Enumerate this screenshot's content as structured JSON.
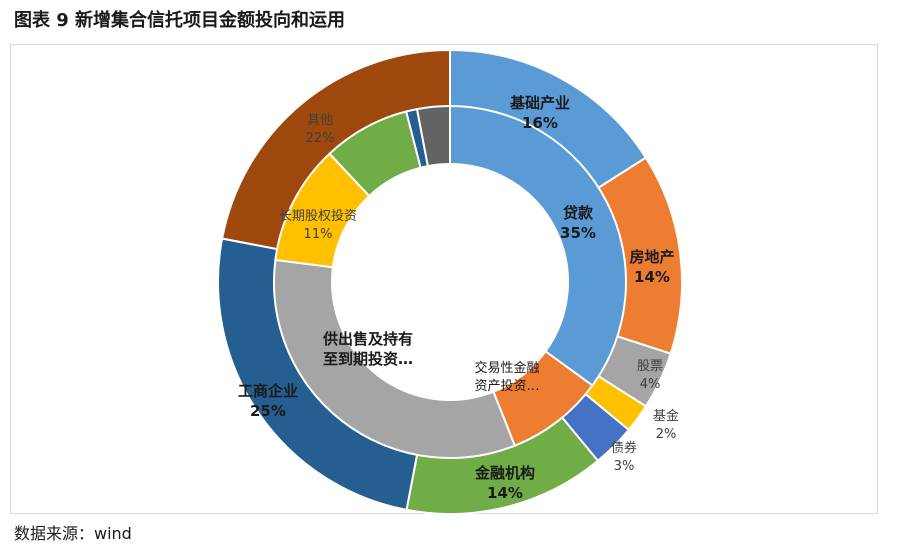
{
  "title": "图表 9  新增集合信托项目金额投向和运用",
  "source": "数据来源：wind",
  "chart_data": [
    {
      "type": "pie",
      "ring": "outer",
      "title": "",
      "slices": [
        {
          "name": "基础产业",
          "pct_label": "16%",
          "value": 16,
          "color": "#5b9bd5",
          "label_color": "#1a1a1a",
          "bold": true
        },
        {
          "name": "房地产",
          "pct_label": "14%",
          "value": 14,
          "color": "#ed7d31",
          "label_color": "#1a1a1a",
          "bold": true
        },
        {
          "name": "股票",
          "pct_label": "4%",
          "value": 4,
          "color": "#a5a5a5",
          "label_color": "#404040",
          "bold": false
        },
        {
          "name": "基金",
          "pct_label": "2%",
          "value": 2,
          "color": "#ffc000",
          "label_color": "#404040",
          "bold": false
        },
        {
          "name": "债券",
          "pct_label": "3%",
          "value": 3,
          "color": "#4472c4",
          "label_color": "#404040",
          "bold": false
        },
        {
          "name": "金融机构",
          "pct_label": "14%",
          "value": 14,
          "color": "#70ad47",
          "label_color": "#1a1a1a",
          "bold": true
        },
        {
          "name": "工商企业",
          "pct_label": "25%",
          "value": 25,
          "color": "#255e91",
          "label_color": "#1a1a1a",
          "bold": true
        },
        {
          "name": "其他",
          "pct_label": "22%",
          "value": 22,
          "color": "#9e480e",
          "label_color": "#404040",
          "bold": false
        }
      ]
    },
    {
      "type": "pie",
      "ring": "inner",
      "title": "",
      "slices": [
        {
          "name": "贷款",
          "pct_label": "35%",
          "value": 35,
          "color": "#5b9bd5",
          "label_color": "#1a1a1a",
          "bold": true
        },
        {
          "name": "交易性金融\n资产投资…",
          "pct_label": "",
          "value": 9,
          "color": "#ed7d31",
          "label_color": "#1a1a1a",
          "bold": false
        },
        {
          "name": "供出售及持有\n至到期投资…",
          "pct_label": "",
          "value": 33,
          "color": "#a5a5a5",
          "label_color": "#1a1a1a",
          "bold": true
        },
        {
          "name": "长期股权投资",
          "pct_label": "11%",
          "value": 11,
          "color": "#ffc000",
          "label_color": "#404040",
          "bold": false
        },
        {
          "name": "",
          "pct_label": "",
          "value": 8,
          "color": "#70ad47",
          "label_color": "#404040",
          "bold": false
        },
        {
          "name": "",
          "pct_label": "",
          "value": 1,
          "color": "#255e91",
          "label_color": "#404040",
          "bold": false
        },
        {
          "name": "",
          "pct_label": "",
          "value": 3,
          "color": "#636363",
          "label_color": "#404040",
          "bold": false
        }
      ]
    }
  ]
}
